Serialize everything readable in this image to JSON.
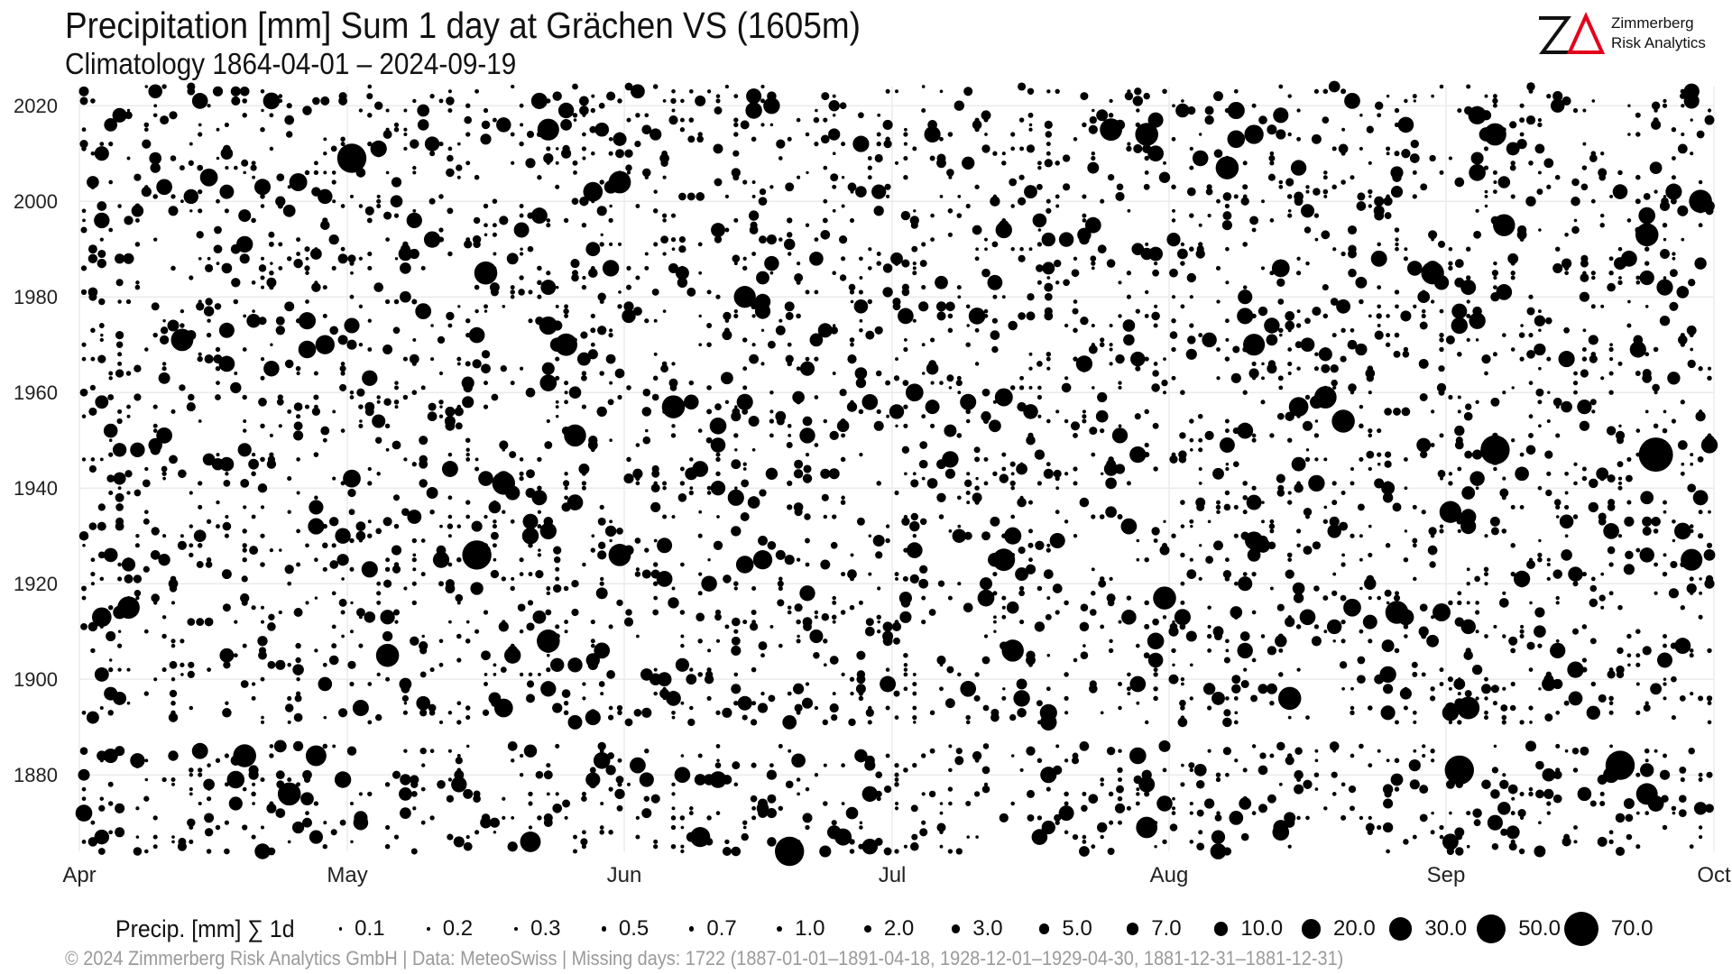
{
  "header": {
    "title": "Precipitation [mm] Sum 1 day at Grächen  VS (1605m)",
    "subtitle": "Climatology 1864-04-01 – 2024-09-19"
  },
  "logo": {
    "mark": "ZΔ",
    "line1": "Zimmerberg",
    "line2": "Risk Analytics",
    "accent_color": "#e3001b"
  },
  "footer": {
    "text": "©  2024 Zimmerberg Risk Analytics GmbH | Data: MeteoSwiss | Missing days: 1722 (1887-01-01–1891-04-18, 1928-12-01–1929-04-30, 1881-12-31–1881-12-31)"
  },
  "chart_data": {
    "type": "scatter",
    "title": "Precipitation [mm] Sum 1 day at Grächen  VS (1605m)",
    "subtitle": "Climatology 1864-04-01 – 2024-09-19",
    "x_axis": {
      "ticks": [
        "Apr",
        "May",
        "Jun",
        "Jul",
        "Aug",
        "Sep",
        "Oct"
      ],
      "month_lengths": [
        30,
        31,
        30,
        31,
        31,
        30
      ],
      "range_days": [
        0,
        183
      ]
    },
    "y_axis": {
      "ticks": [
        1880,
        1900,
        1920,
        1940,
        1960,
        1980,
        2000,
        2020
      ],
      "range": [
        1864,
        2024
      ]
    },
    "grid": true,
    "marker_color": "#000000",
    "size_legend": {
      "title": "Precip. [mm] ∑ 1d",
      "values": [
        "0.1",
        "0.2",
        "0.3",
        "0.5",
        "0.7",
        "1.0",
        "2.0",
        "3.0",
        "5.0",
        "7.0",
        "10.0",
        "20.0",
        "30.0",
        "50.0",
        "70.0"
      ],
      "position": "bottom"
    },
    "missing_periods": [
      [
        "1887-01-01",
        "1891-04-18"
      ],
      [
        "1928-12-01",
        "1929-04-30"
      ],
      [
        "1881-12-31",
        "1881-12-31"
      ]
    ],
    "notable_points": [
      {
        "date": "1947-09-24",
        "precip_mm": 70.0
      },
      {
        "date": "1948-09-06",
        "precip_mm": 50.0
      },
      {
        "date": "1926-05-15",
        "precip_mm": 50.0
      },
      {
        "date": "2009-05-01",
        "precip_mm": 50.0
      },
      {
        "date": "1864-06-19",
        "precip_mm": 50.0
      },
      {
        "date": "1881-09-02",
        "precip_mm": 50.0
      },
      {
        "date": "1882-09-20",
        "precip_mm": 50.0
      },
      {
        "date": "1954-08-20",
        "precip_mm": 30.0
      },
      {
        "date": "1914-08-26",
        "precip_mm": 30.0
      },
      {
        "date": "1917-07-31",
        "precip_mm": 30.0
      },
      {
        "date": "1993-09-23",
        "precip_mm": 30.0
      },
      {
        "date": "2000-09-29",
        "precip_mm": 30.0
      },
      {
        "date": "1985-05-16",
        "precip_mm": 30.0
      },
      {
        "date": "1905-05-05",
        "precip_mm": 30.0
      },
      {
        "date": "1908-05-23",
        "precip_mm": 30.0
      },
      {
        "date": "1876-04-24",
        "precip_mm": 30.0
      },
      {
        "date": "1884-04-19",
        "precip_mm": 30.0
      },
      {
        "date": "1957-06-06",
        "precip_mm": 30.0
      },
      {
        "date": "2014-07-29",
        "precip_mm": 30.0
      },
      {
        "date": "2007-08-07",
        "precip_mm": 30.0
      }
    ]
  }
}
